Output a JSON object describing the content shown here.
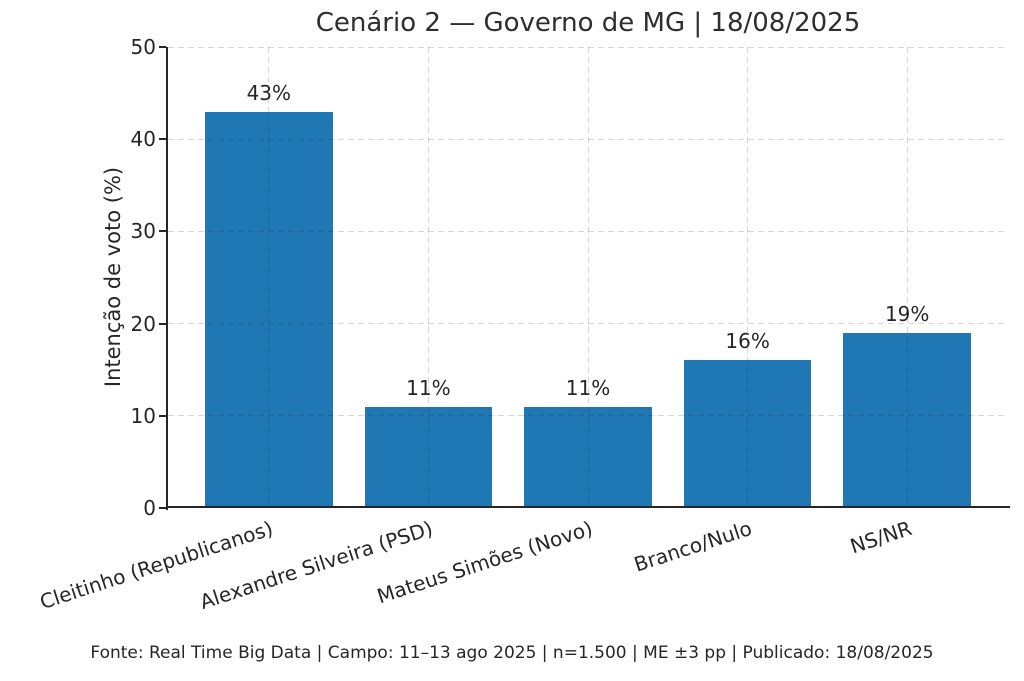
{
  "page": {
    "background": "#ffffff"
  },
  "chart_data": {
    "type": "bar",
    "title": "Cenário 2 — Governo de MG | 18/08/2025",
    "categories": [
      "Cleitinho (Republicanos)",
      "Alexandre Silveira (PSD)",
      "Mateus Simões (Novo)",
      "Branco/Nulo",
      "NS/NR"
    ],
    "values": [
      43,
      11,
      11,
      16,
      19
    ],
    "value_labels": [
      "43%",
      "11%",
      "11%",
      "16%",
      "19%"
    ],
    "xlabel": "",
    "ylabel": "Intenção de voto (%)",
    "ylim": [
      0,
      50
    ],
    "yticks": [
      0,
      10,
      20,
      30,
      40,
      50
    ],
    "ytick_labels": [
      "0",
      "10",
      "20",
      "30",
      "40",
      "50"
    ],
    "grid": "dashed, horizontal and vertical, drawn over bars",
    "legend": "none",
    "bar_color": "#1f77b4",
    "axis_color": "#262626",
    "grid_color": "rgba(0,0,0,0.16)",
    "source_note": "Fonte: Real Time Big Data | Campo: 11–13 ago 2025 | n=1.500 | ME ±3 pp | Publicado: 18/08/2025"
  }
}
